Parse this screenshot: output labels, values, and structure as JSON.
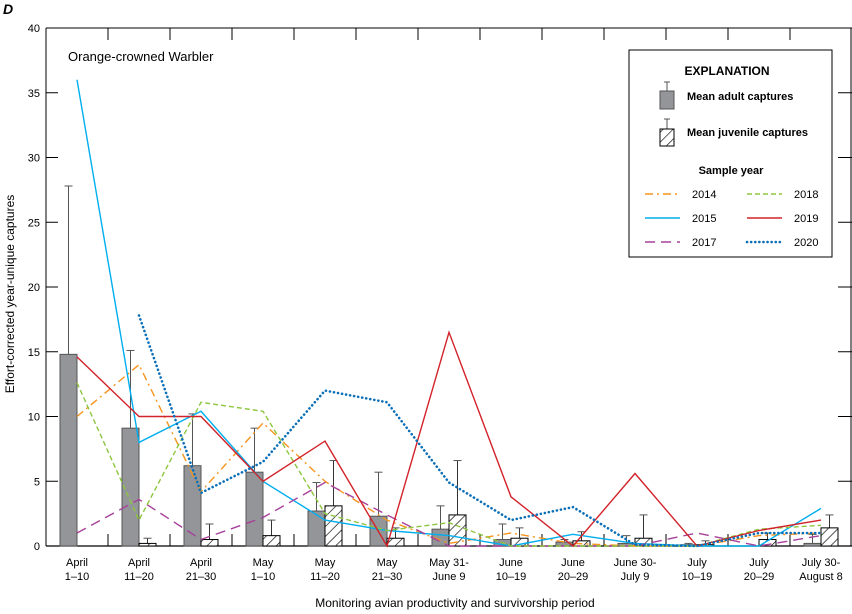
{
  "chart_data": {
    "type": "bar",
    "panel_label": "D",
    "title": "Orange-crowned Warbler",
    "xlabel": "Monitoring avian productivity and survivorship period",
    "ylabel": "Effort-corrected year-unique captures",
    "ylim": [
      0,
      40
    ],
    "yticks": [
      0,
      5,
      10,
      15,
      20,
      25,
      30,
      35,
      40
    ],
    "grid": false,
    "legend_placement": "top-right",
    "categories": [
      [
        "April",
        "1–10"
      ],
      [
        "April",
        "11–20"
      ],
      [
        "April",
        "21–30"
      ],
      [
        "May",
        "1–10"
      ],
      [
        "May",
        "11–20"
      ],
      [
        "May",
        "21–30"
      ],
      [
        "May 31-",
        "June 9"
      ],
      [
        "June",
        "10–19"
      ],
      [
        "June",
        "20–29"
      ],
      [
        "June 30-",
        "July 9"
      ],
      [
        "July",
        "10–19"
      ],
      [
        "July",
        "20–29"
      ],
      [
        "July 30-",
        "August 8"
      ]
    ],
    "bars": [
      {
        "name": "Mean adult captures",
        "fill": "#939598",
        "values": [
          14.8,
          9.1,
          6.2,
          5.7,
          2.7,
          2.3,
          1.3,
          0.5,
          0.3,
          0.2,
          0.1,
          0.0,
          0.2
        ],
        "error": [
          27.8,
          15.1,
          10.2,
          9.1,
          4.9,
          5.7,
          3.1,
          1.7,
          0.5,
          0.8,
          0.2,
          0.0,
          0.9
        ]
      },
      {
        "name": "Mean juvenile captures",
        "fill": "hatch",
        "values": [
          0.0,
          0.2,
          0.5,
          0.8,
          3.1,
          0.6,
          2.4,
          0.6,
          0.4,
          0.6,
          0.1,
          0.5,
          1.4
        ],
        "error": [
          0.0,
          0.6,
          1.7,
          2.0,
          6.6,
          1.4,
          6.6,
          1.4,
          1.1,
          2.4,
          0.4,
          1.0,
          2.4
        ]
      }
    ],
    "series": [
      {
        "name": "2014",
        "color": "#f7941d",
        "dash": "dashdot",
        "values": [
          10.0,
          14.0,
          4.2,
          9.5,
          5.0,
          2.0,
          0.2,
          1.0,
          0.2,
          0.0,
          0.0,
          0.8,
          1.0
        ]
      },
      {
        "name": "2015",
        "color": "#00aeef",
        "dash": "solid",
        "values": [
          36.0,
          8.0,
          10.4,
          5.0,
          2.0,
          1.2,
          0.8,
          0.0,
          0.9,
          0.2,
          0.0,
          0.0,
          2.9
        ]
      },
      {
        "name": "2017",
        "color": "#a7419a",
        "dash": "longdash",
        "values": [
          1.0,
          3.6,
          0.5,
          2.2,
          4.9,
          2.4,
          0.0,
          0.0,
          0.0,
          0.0,
          1.0,
          0.0,
          0.8
        ]
      },
      {
        "name": "2018",
        "color": "#8dc63f",
        "dash": "dash",
        "values": [
          12.6,
          2.0,
          11.1,
          10.4,
          2.5,
          1.2,
          1.8,
          0.0,
          0.0,
          0.0,
          0.0,
          1.3,
          1.6
        ]
      },
      {
        "name": "2019",
        "color": "#d2232a",
        "dash": "solid",
        "values": [
          14.6,
          10.0,
          10.0,
          5.0,
          8.1,
          0.0,
          16.5,
          3.8,
          0.0,
          5.6,
          0.0,
          1.2,
          2.0
        ]
      },
      {
        "name": "2020",
        "color": "#0b6fb8",
        "dash": "dotted",
        "values": [
          null,
          17.8,
          4.1,
          6.5,
          12.0,
          11.1,
          4.9,
          2.0,
          3.0,
          0.1,
          0.0,
          1.0,
          1.0
        ]
      }
    ]
  },
  "legend": {
    "title": "EXPLANATION",
    "adult_label": "Mean adult captures",
    "juvenile_label": "Mean juvenile captures",
    "sample_year_title": "Sample year"
  }
}
